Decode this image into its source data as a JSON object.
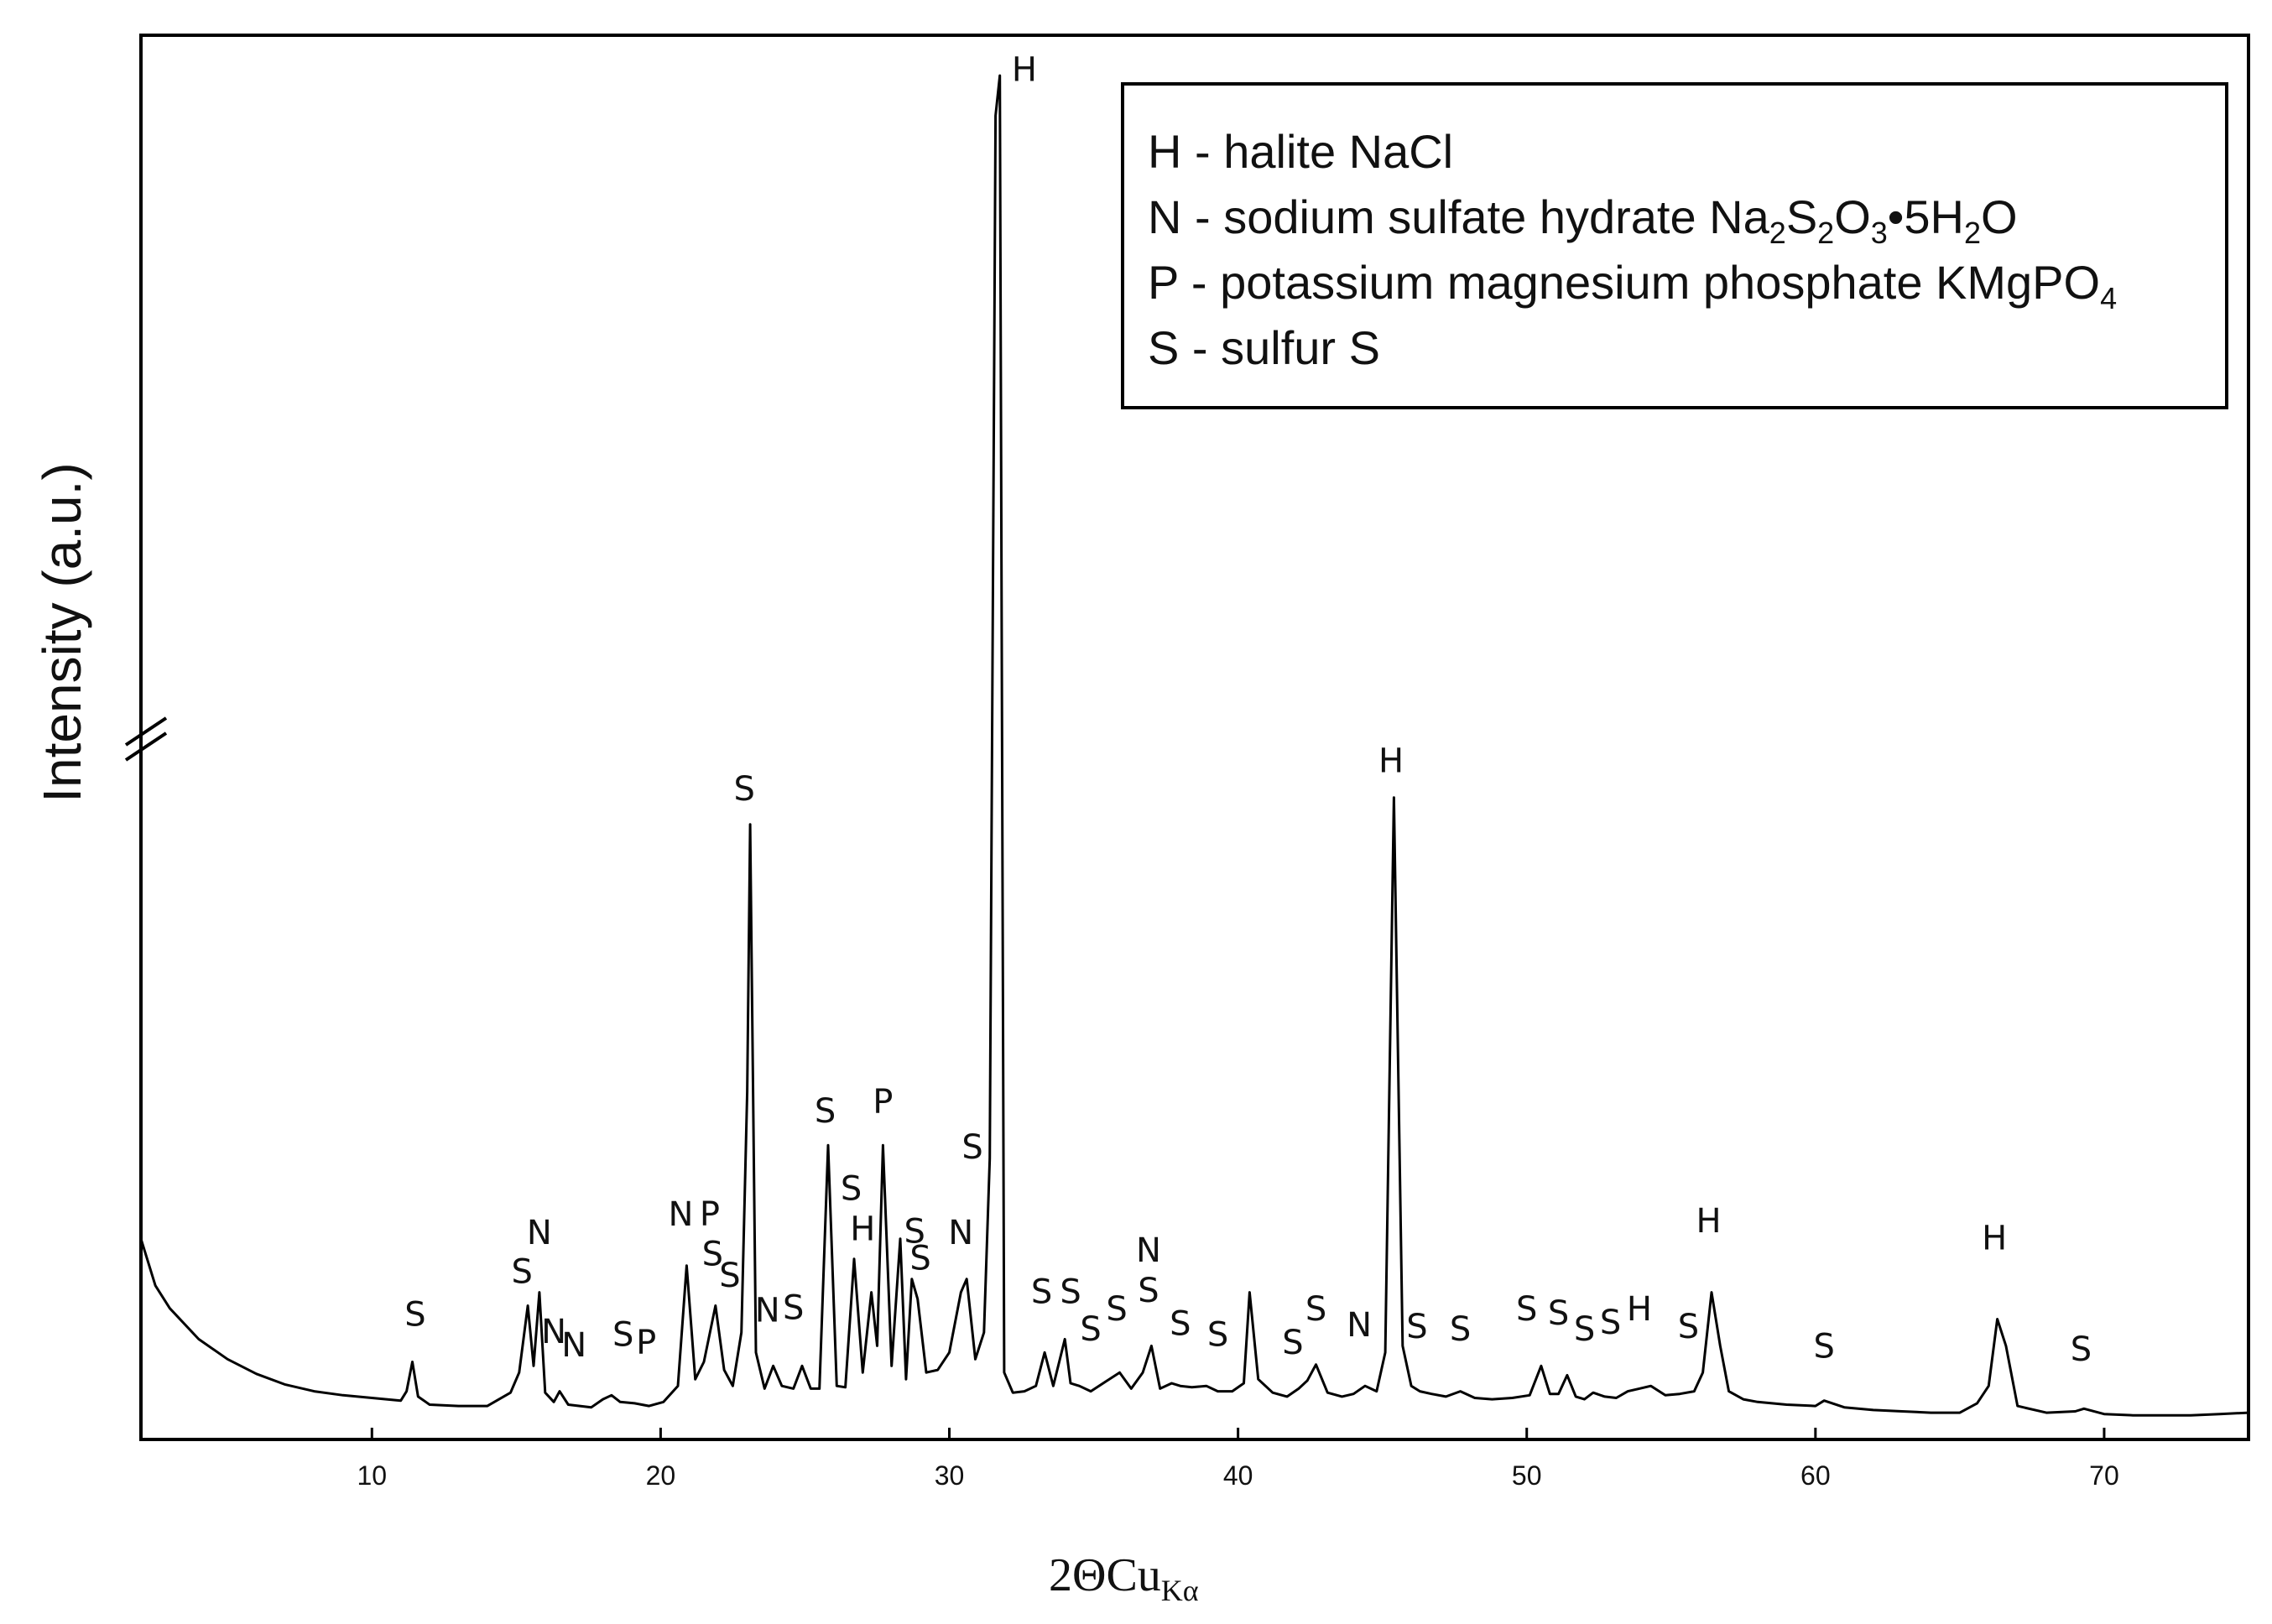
{
  "chart_data": {
    "type": "line",
    "title": "",
    "xlabel": "2ΘCu",
    "xlabel_sub": "Kα",
    "ylabel": "Intensity (a.u.)",
    "xlim": [
      2,
      75
    ],
    "ylim": [
      0,
      100
    ],
    "y_axis_break": true,
    "grid": false,
    "x_ticks": [
      10,
      20,
      30,
      40,
      50,
      60,
      70
    ],
    "series": [
      {
        "x": [
          2,
          2.5,
          3,
          4,
          5,
          6,
          7,
          8,
          9,
          10,
          11,
          11.2,
          11.4,
          11.6,
          12,
          13,
          14,
          14.8,
          15.1,
          15.4,
          15.6,
          15.8,
          16.0,
          16.3,
          16.5,
          16.8,
          17.2,
          17.6,
          18.0,
          18.3,
          18.6,
          19.1,
          19.6,
          20.1,
          20.6,
          20.9,
          21.2,
          21.5,
          21.9,
          22.2,
          22.5,
          22.8,
          23.0,
          23.1,
          23.3,
          23.6,
          23.9,
          24.2,
          24.6,
          24.9,
          25.2,
          25.5,
          25.8,
          26.1,
          26.4,
          26.7,
          27.0,
          27.3,
          27.5,
          27.7,
          28.0,
          28.3,
          28.5,
          28.7,
          28.9,
          29.2,
          29.6,
          30.0,
          30.4,
          30.6,
          30.9,
          31.2,
          31.4,
          31.6,
          31.75,
          31.9,
          32.2,
          32.6,
          33.0,
          33.3,
          33.6,
          34.0,
          34.2,
          34.5,
          34.9,
          35.4,
          35.9,
          36.3,
          36.7,
          37.0,
          37.3,
          37.7,
          38.0,
          38.4,
          38.9,
          39.3,
          39.8,
          40.2,
          40.4,
          40.7,
          41.2,
          41.7,
          42.1,
          42.4,
          42.7,
          43.1,
          43.6,
          44.0,
          44.4,
          44.8,
          45.1,
          45.4,
          45.7,
          46.0,
          46.3,
          46.7,
          47.2,
          47.7,
          48.2,
          48.8,
          49.5,
          50.1,
          50.5,
          50.8,
          51.1,
          51.4,
          51.7,
          52.0,
          52.3,
          52.7,
          53.1,
          53.5,
          53.9,
          54.3,
          54.8,
          55.3,
          55.8,
          56.1,
          56.4,
          56.7,
          57.0,
          57.5,
          58.0,
          59.0,
          60.0,
          60.3,
          61.0,
          62.0,
          63.0,
          64.0,
          65.0,
          65.6,
          66.0,
          66.3,
          66.6,
          67.0,
          68.0,
          69.0,
          69.3,
          70.0,
          71.0,
          72.0,
          73.0,
          74.0,
          75.0
        ],
        "values": [
          14,
          10.5,
          8.8,
          6.5,
          5.0,
          3.9,
          3.1,
          2.6,
          2.3,
          2.1,
          1.9,
          2.6,
          4.8,
          2.2,
          1.6,
          1.5,
          1.5,
          2.5,
          4.0,
          9.0,
          4.5,
          10.0,
          2.5,
          1.8,
          2.6,
          1.6,
          1.5,
          1.4,
          2.0,
          2.3,
          1.8,
          1.7,
          1.5,
          1.8,
          3.0,
          12.0,
          3.5,
          4.8,
          9.0,
          4.2,
          3.0,
          7.0,
          25.0,
          45.0,
          5.5,
          2.8,
          4.5,
          3.0,
          2.8,
          4.5,
          2.8,
          2.8,
          21.0,
          3.0,
          2.9,
          12.5,
          4.0,
          10.0,
          6.0,
          21.0,
          4.5,
          14.0,
          3.5,
          11.0,
          9.5,
          4.0,
          4.2,
          5.5,
          10.0,
          11.0,
          5.0,
          7.0,
          20.0,
          98.0,
          101.0,
          4.0,
          2.5,
          2.6,
          3.0,
          5.5,
          3.0,
          6.5,
          3.2,
          3.0,
          2.6,
          3.3,
          4.0,
          2.8,
          4.0,
          6.0,
          2.8,
          3.2,
          3.0,
          2.9,
          3.0,
          2.6,
          2.6,
          3.2,
          10.0,
          3.5,
          2.5,
          2.2,
          2.8,
          3.4,
          4.6,
          2.5,
          2.2,
          2.4,
          3.0,
          2.6,
          5.5,
          47.0,
          6.0,
          3.0,
          2.6,
          2.4,
          2.2,
          2.6,
          2.1,
          2.0,
          2.1,
          2.3,
          4.5,
          2.4,
          2.4,
          3.8,
          2.2,
          2.0,
          2.5,
          2.2,
          2.1,
          2.6,
          2.8,
          3.0,
          2.3,
          2.4,
          2.6,
          4.0,
          10.0,
          6.0,
          2.6,
          2.0,
          1.8,
          1.6,
          1.5,
          1.9,
          1.4,
          1.2,
          1.1,
          1.0,
          1.0,
          1.7,
          3.0,
          8.0,
          6.0,
          1.5,
          1.0,
          1.1,
          1.3,
          0.9,
          0.8,
          0.8,
          0.8,
          0.9,
          1.0
        ]
      }
    ],
    "peak_labels": [
      {
        "text": "S",
        "x": 11.5,
        "y": 7.5
      },
      {
        "text": "S",
        "x": 15.2,
        "y": 10.7
      },
      {
        "text": "N",
        "x": 15.8,
        "y": 13.6
      },
      {
        "text": "N",
        "x": 16.3,
        "y": 6.2
      },
      {
        "text": "N",
        "x": 17.0,
        "y": 5.2
      },
      {
        "text": "S",
        "x": 18.7,
        "y": 6.0
      },
      {
        "text": "P",
        "x": 19.5,
        "y": 5.4
      },
      {
        "text": "N",
        "x": 20.7,
        "y": 15.0
      },
      {
        "text": "P",
        "x": 21.7,
        "y": 15.0
      },
      {
        "text": "S",
        "x": 21.8,
        "y": 12.0
      },
      {
        "text": "S",
        "x": 22.4,
        "y": 10.4
      },
      {
        "text": "N",
        "x": 23.7,
        "y": 7.8
      },
      {
        "text": "S",
        "x": 24.6,
        "y": 8.0
      },
      {
        "text": "S",
        "x": 22.9,
        "y": 46.8
      },
      {
        "text": "S",
        "x": 25.7,
        "y": 22.7
      },
      {
        "text": "P",
        "x": 27.7,
        "y": 23.4
      },
      {
        "text": "S",
        "x": 26.6,
        "y": 16.9
      },
      {
        "text": "H",
        "x": 27.0,
        "y": 13.9
      },
      {
        "text": "S",
        "x": 28.8,
        "y": 13.7
      },
      {
        "text": "S",
        "x": 29.0,
        "y": 11.7
      },
      {
        "text": "N",
        "x": 30.4,
        "y": 13.6
      },
      {
        "text": "S",
        "x": 30.8,
        "y": 20.0
      },
      {
        "text": "H",
        "x": 32.6,
        "y": 100.6
      },
      {
        "text": "S",
        "x": 33.2,
        "y": 9.2
      },
      {
        "text": "S",
        "x": 34.2,
        "y": 9.2
      },
      {
        "text": "S",
        "x": 34.9,
        "y": 6.4
      },
      {
        "text": "S",
        "x": 35.8,
        "y": 7.9
      },
      {
        "text": "N",
        "x": 36.9,
        "y": 12.3
      },
      {
        "text": "S",
        "x": 36.9,
        "y": 9.3
      },
      {
        "text": "S",
        "x": 38.0,
        "y": 6.8
      },
      {
        "text": "S",
        "x": 39.3,
        "y": 6.0
      },
      {
        "text": "H",
        "x": 45.3,
        "y": 48.9
      },
      {
        "text": "S",
        "x": 41.9,
        "y": 5.4
      },
      {
        "text": "S",
        "x": 42.7,
        "y": 7.9
      },
      {
        "text": "N",
        "x": 44.2,
        "y": 6.7
      },
      {
        "text": "S",
        "x": 46.2,
        "y": 6.6
      },
      {
        "text": "S",
        "x": 47.7,
        "y": 6.4
      },
      {
        "text": "S",
        "x": 50.0,
        "y": 7.9
      },
      {
        "text": "S",
        "x": 51.1,
        "y": 7.6
      },
      {
        "text": "S",
        "x": 52.0,
        "y": 6.4
      },
      {
        "text": "S",
        "x": 52.9,
        "y": 6.9
      },
      {
        "text": "H",
        "x": 53.9,
        "y": 7.9
      },
      {
        "text": "S",
        "x": 55.6,
        "y": 6.6
      },
      {
        "text": "H",
        "x": 56.3,
        "y": 14.5
      },
      {
        "text": "S",
        "x": 60.3,
        "y": 5.1
      },
      {
        "text": "H",
        "x": 66.2,
        "y": 13.2
      },
      {
        "text": "S",
        "x": 69.2,
        "y": 4.9
      }
    ],
    "legend": {
      "placement": "top-right",
      "entries": [
        {
          "text": "H - halite NaCl",
          "parts": [
            {
              "t": "H - halite NaCl"
            }
          ]
        },
        {
          "text": "N - sodium sulfate hydrate Na2S2O3•5H2O",
          "parts": [
            {
              "t": "N - sodium sulfate hydrate Na"
            },
            {
              "t": "2",
              "sub": true
            },
            {
              "t": "S"
            },
            {
              "t": "2",
              "sub": true
            },
            {
              "t": "O"
            },
            {
              "t": "3",
              "sub": true
            },
            {
              "t": "•5H"
            },
            {
              "t": "2",
              "sub": true
            },
            {
              "t": "O"
            }
          ]
        },
        {
          "text": "P - potassium magnesium phosphate KMgPO4",
          "parts": [
            {
              "t": "P - potassium magnesium phosphate KMgPO"
            },
            {
              "t": "4",
              "sub": true
            }
          ]
        },
        {
          "text": "S - sulfur S",
          "parts": [
            {
              "t": "S - sulfur S"
            }
          ]
        }
      ]
    },
    "line_color": "#000000"
  }
}
